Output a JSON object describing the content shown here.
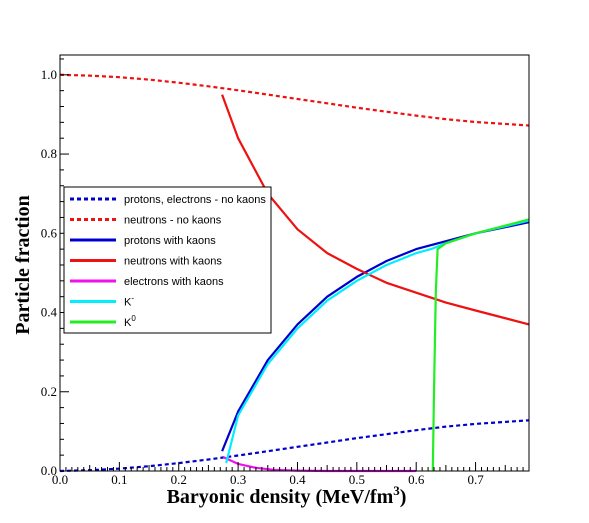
{
  "chart_data": {
    "type": "line",
    "xlabel": "Baryonic density (MeV/fm3)",
    "xlabel_parts": {
      "main": "Baryonic density (MeV/fm",
      "sup": "3",
      "end": ")"
    },
    "ylabel": "Particle fraction",
    "xlim": [
      0.0,
      0.79
    ],
    "ylim": [
      0.0,
      1.05
    ],
    "x_ticks": [
      0.0,
      0.1,
      0.2,
      0.3,
      0.4,
      0.5,
      0.6,
      0.7
    ],
    "x_tick_labels": [
      "0.0",
      "0.1",
      "0.2",
      "0.3",
      "0.4",
      "0.5",
      "0.6",
      "0.7"
    ],
    "y_ticks": [
      0.0,
      0.2,
      0.4,
      0.6,
      0.8,
      1.0
    ],
    "y_tick_labels": [
      "0.0",
      "0.2",
      "0.4",
      "0.6",
      "0.8",
      "1.0"
    ],
    "legend_position": "left",
    "grid": false,
    "series": [
      {
        "name": "protons, electrons - no kaons",
        "color": "#0000cc",
        "dash": "dotted",
        "x": [
          0.0,
          0.05,
          0.1,
          0.15,
          0.2,
          0.25,
          0.3,
          0.35,
          0.4,
          0.45,
          0.5,
          0.55,
          0.6,
          0.65,
          0.7,
          0.79
        ],
        "y": [
          0.0,
          0.002,
          0.006,
          0.012,
          0.02,
          0.029,
          0.039,
          0.05,
          0.061,
          0.072,
          0.083,
          0.093,
          0.103,
          0.112,
          0.119,
          0.128
        ]
      },
      {
        "name": "neutrons - no kaons",
        "color": "#ee1111",
        "dash": "dotted",
        "x": [
          0.0,
          0.05,
          0.1,
          0.15,
          0.2,
          0.25,
          0.3,
          0.35,
          0.4,
          0.45,
          0.5,
          0.55,
          0.6,
          0.65,
          0.7,
          0.79
        ],
        "y": [
          1.0,
          0.998,
          0.994,
          0.988,
          0.98,
          0.971,
          0.961,
          0.95,
          0.939,
          0.928,
          0.917,
          0.907,
          0.897,
          0.888,
          0.881,
          0.872
        ]
      },
      {
        "name": "protons with kaons",
        "color": "#0000cc",
        "dash": "solid",
        "x": [
          0.273,
          0.3,
          0.35,
          0.4,
          0.45,
          0.5,
          0.55,
          0.6,
          0.65,
          0.7,
          0.79
        ],
        "y": [
          0.05,
          0.15,
          0.28,
          0.37,
          0.44,
          0.49,
          0.53,
          0.56,
          0.58,
          0.6,
          0.628
        ]
      },
      {
        "name": "neutrons with kaons",
        "color": "#ee1111",
        "dash": "solid",
        "x": [
          0.273,
          0.3,
          0.35,
          0.4,
          0.45,
          0.5,
          0.55,
          0.6,
          0.65,
          0.7,
          0.79
        ],
        "y": [
          0.95,
          0.84,
          0.7,
          0.61,
          0.55,
          0.51,
          0.475,
          0.45,
          0.425,
          0.405,
          0.37
        ]
      },
      {
        "name": "electrons with kaons",
        "color": "#ee11ee",
        "dash": "solid",
        "x": [
          0.275,
          0.3,
          0.33,
          0.36,
          0.4,
          0.45,
          0.5,
          0.55,
          0.6
        ],
        "y": [
          0.035,
          0.018,
          0.008,
          0.003,
          0.001,
          0.0,
          0.0,
          0.0,
          0.0
        ]
      },
      {
        "name": "K-",
        "color": "#00eeff",
        "dash": "solid",
        "x": [
          0.28,
          0.3,
          0.35,
          0.4,
          0.45,
          0.5,
          0.55,
          0.6,
          0.625,
          0.65,
          0.7,
          0.79
        ],
        "y": [
          0.02,
          0.14,
          0.27,
          0.36,
          0.43,
          0.48,
          0.52,
          0.55,
          0.56,
          0.575,
          0.6,
          0.632
        ]
      },
      {
        "name": "K0",
        "color": "#22ee22",
        "dash": "solid",
        "x": [
          0.628,
          0.63,
          0.633,
          0.636,
          0.65,
          0.7,
          0.79
        ],
        "y": [
          0.0,
          0.2,
          0.45,
          0.56,
          0.575,
          0.6,
          0.635
        ]
      }
    ],
    "legend_labels": [
      {
        "text": "protons, electrons - no kaons",
        "sup": ""
      },
      {
        "text": "neutrons - no kaons",
        "sup": ""
      },
      {
        "text": "protons with kaons",
        "sup": ""
      },
      {
        "text": "neutrons with kaons",
        "sup": ""
      },
      {
        "text": "electrons with kaons",
        "sup": ""
      },
      {
        "text": "K",
        "sup": "-"
      },
      {
        "text": "K",
        "sup": "0"
      }
    ]
  }
}
